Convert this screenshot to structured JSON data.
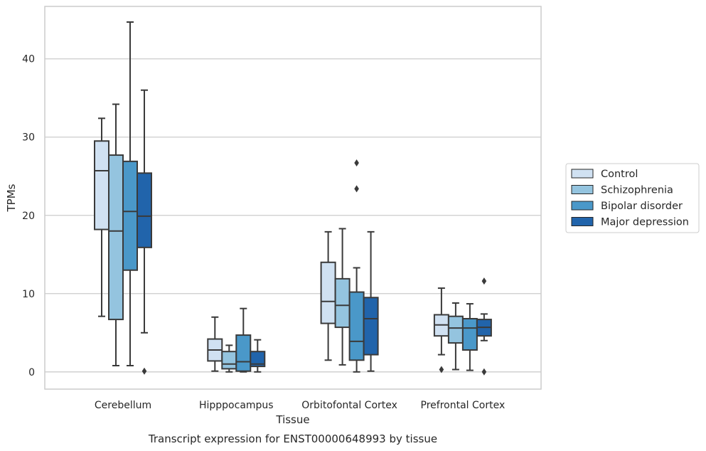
{
  "chart_data": {
    "type": "box",
    "caption": "Transcript expression for ENST00000648993 by tissue",
    "xlabel": "Tissue",
    "ylabel": "TPMs",
    "ylim": [
      -2.2,
      46.7
    ],
    "yticks": [
      0,
      10,
      20,
      30,
      40
    ],
    "grid": "horizontal",
    "legend_position": "right",
    "categories": [
      "Cerebellum",
      "Hipppocampus",
      "Orbitofontal Cortex",
      "Prefrontal Cortex"
    ],
    "series": [
      {
        "name": "Control",
        "color": "#d0e1f2",
        "boxes": [
          {
            "whislo": 7.1,
            "q1": 18.2,
            "med": 25.7,
            "q3": 29.5,
            "whishi": 32.4,
            "fliers": []
          },
          {
            "whislo": 0.1,
            "q1": 1.4,
            "med": 2.8,
            "q3": 4.2,
            "whishi": 7.0,
            "fliers": []
          },
          {
            "whislo": 1.5,
            "q1": 6.2,
            "med": 9.0,
            "q3": 14.0,
            "whishi": 17.9,
            "fliers": []
          },
          {
            "whislo": 2.2,
            "q1": 4.6,
            "med": 6.0,
            "q3": 7.3,
            "whishi": 10.7,
            "fliers": [
              0.3
            ]
          }
        ]
      },
      {
        "name": "Schizophrenia",
        "color": "#94c4df",
        "boxes": [
          {
            "whislo": 0.8,
            "q1": 6.7,
            "med": 18.0,
            "q3": 27.7,
            "whishi": 34.2,
            "fliers": []
          },
          {
            "whislo": 0.0,
            "q1": 0.4,
            "med": 1.0,
            "q3": 2.6,
            "whishi": 3.4,
            "fliers": []
          },
          {
            "whislo": 0.9,
            "q1": 5.7,
            "med": 8.5,
            "q3": 11.9,
            "whishi": 18.3,
            "fliers": []
          },
          {
            "whislo": 0.3,
            "q1": 3.7,
            "med": 5.6,
            "q3": 7.1,
            "whishi": 8.8,
            "fliers": []
          }
        ]
      },
      {
        "name": "Bipolar disorder",
        "color": "#4a98c9",
        "boxes": [
          {
            "whislo": 0.8,
            "q1": 13.0,
            "med": 20.5,
            "q3": 26.9,
            "whishi": 44.7,
            "fliers": []
          },
          {
            "whislo": 0.0,
            "q1": 0.1,
            "med": 1.3,
            "q3": 4.7,
            "whishi": 8.1,
            "fliers": []
          },
          {
            "whislo": 0.0,
            "q1": 1.5,
            "med": 3.9,
            "q3": 10.2,
            "whishi": 13.3,
            "fliers": [
              23.4,
              26.7
            ]
          },
          {
            "whislo": 0.2,
            "q1": 2.8,
            "med": 5.6,
            "q3": 6.8,
            "whishi": 8.7,
            "fliers": []
          }
        ]
      },
      {
        "name": "Major depression",
        "color": "#2164ab",
        "boxes": [
          {
            "whislo": 5.0,
            "q1": 15.9,
            "med": 19.9,
            "q3": 25.4,
            "whishi": 36.0,
            "fliers": [
              0.1
            ]
          },
          {
            "whislo": 0.0,
            "q1": 0.7,
            "med": 1.0,
            "q3": 2.6,
            "whishi": 4.1,
            "fliers": []
          },
          {
            "whislo": 0.1,
            "q1": 2.2,
            "med": 6.8,
            "q3": 9.5,
            "whishi": 17.9,
            "fliers": []
          },
          {
            "whislo": 4.0,
            "q1": 4.6,
            "med": 5.7,
            "q3": 6.7,
            "whishi": 7.4,
            "fliers": [
              11.6,
              0.0
            ]
          }
        ]
      }
    ]
  }
}
